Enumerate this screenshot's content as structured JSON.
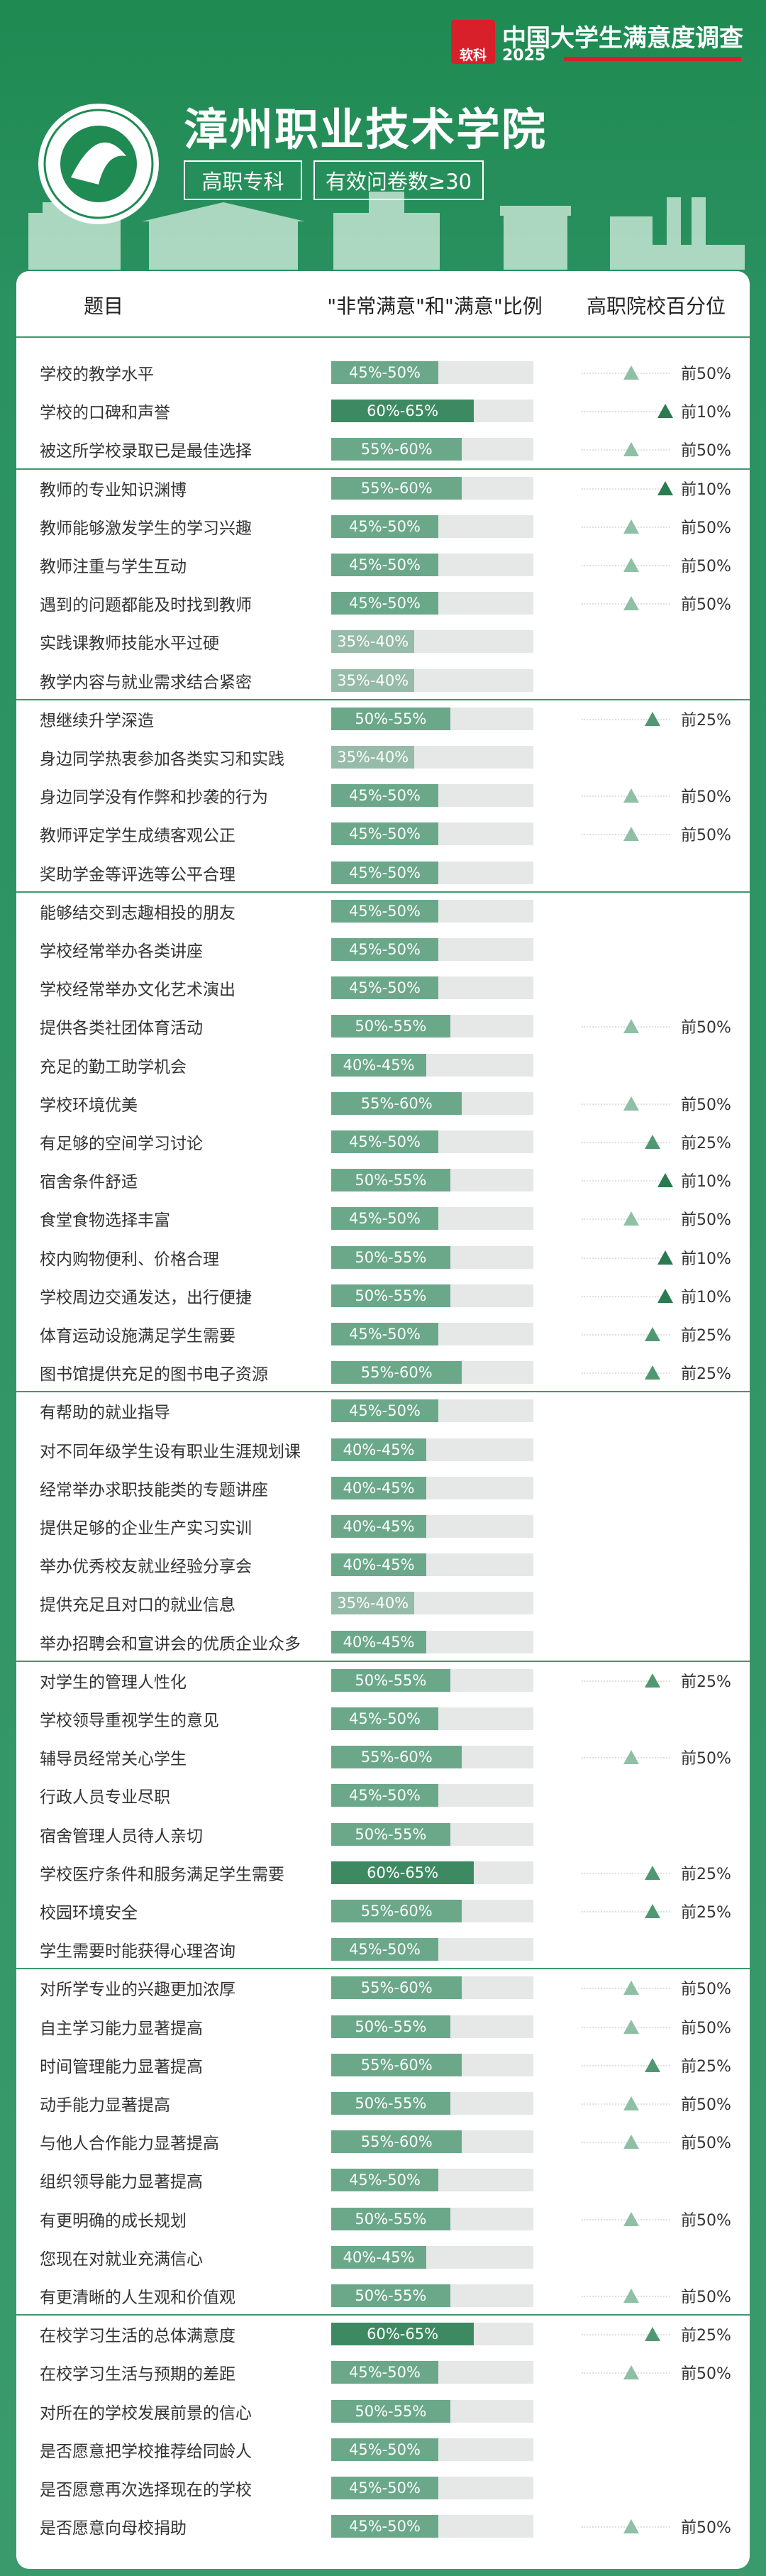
{
  "brand": {
    "logo": "软科",
    "name": "中国大学生满意度调查",
    "year": "2025"
  },
  "header": {
    "title": "漳州职业技术学院",
    "tags": [
      "高职专科",
      "有效问卷数≥30"
    ]
  },
  "table": {
    "columns": [
      "题目",
      "\"非常满意\"和\"满意\"比例",
      "高职院校百分位"
    ],
    "groups": [
      {
        "rows": [
          {
            "item": "学校的教学水平",
            "range": "45%-50%",
            "percentile": "前50%"
          },
          {
            "item": "学校的口碑和声誉",
            "range": "60%-65%",
            "percentile": "前10%"
          },
          {
            "item": "被这所学校录取已是最佳选择",
            "range": "55%-60%",
            "percentile": "前50%"
          }
        ]
      },
      {
        "rows": [
          {
            "item": "教师的专业知识渊博",
            "range": "55%-60%",
            "percentile": "前10%"
          },
          {
            "item": "教师能够激发学生的学习兴趣",
            "range": "45%-50%",
            "percentile": "前50%"
          },
          {
            "item": "教师注重与学生互动",
            "range": "45%-50%",
            "percentile": "前50%"
          },
          {
            "item": "遇到的问题都能及时找到教师",
            "range": "45%-50%",
            "percentile": "前50%"
          },
          {
            "item": "实践课教师技能水平过硬",
            "range": "35%-40%"
          },
          {
            "item": "教学内容与就业需求结合紧密",
            "range": "35%-40%"
          }
        ]
      },
      {
        "rows": [
          {
            "item": "想继续升学深造",
            "range": "50%-55%",
            "percentile": "前25%"
          },
          {
            "item": "身边同学热衷参加各类实习和实践",
            "range": "35%-40%"
          },
          {
            "item": "身边同学没有作弊和抄袭的行为",
            "range": "45%-50%",
            "percentile": "前50%"
          },
          {
            "item": "教师评定学生成绩客观公正",
            "range": "45%-50%",
            "percentile": "前50%"
          },
          {
            "item": "奖助学金等评选等公平合理",
            "range": "45%-50%"
          }
        ]
      },
      {
        "rows": [
          {
            "item": "能够结交到志趣相投的朋友",
            "range": "45%-50%"
          },
          {
            "item": "学校经常举办各类讲座",
            "range": "45%-50%"
          },
          {
            "item": "学校经常举办文化艺术演出",
            "range": "45%-50%"
          },
          {
            "item": "提供各类社团体育活动",
            "range": "50%-55%",
            "percentile": "前50%"
          },
          {
            "item": "充足的勤工助学机会",
            "range": "40%-45%"
          },
          {
            "item": "学校环境优美",
            "range": "55%-60%",
            "percentile": "前50%"
          },
          {
            "item": "有足够的空间学习讨论",
            "range": "45%-50%",
            "percentile": "前25%"
          },
          {
            "item": "宿舍条件舒适",
            "range": "50%-55%",
            "percentile": "前10%"
          },
          {
            "item": "食堂食物选择丰富",
            "range": "45%-50%",
            "percentile": "前50%"
          },
          {
            "item": "校内购物便利、价格合理",
            "range": "50%-55%",
            "percentile": "前10%"
          },
          {
            "item": "学校周边交通发达，出行便捷",
            "range": "50%-55%",
            "percentile": "前10%"
          },
          {
            "item": "体育运动设施满足学生需要",
            "range": "45%-50%",
            "percentile": "前25%"
          },
          {
            "item": "图书馆提供充足的图书电子资源",
            "range": "55%-60%",
            "percentile": "前25%"
          }
        ]
      },
      {
        "rows": [
          {
            "item": "有帮助的就业指导",
            "range": "45%-50%"
          },
          {
            "item": "对不同年级学生设有职业生涯规划课",
            "range": "40%-45%"
          },
          {
            "item": "经常举办求职技能类的专题讲座",
            "range": "40%-45%"
          },
          {
            "item": "提供足够的企业生产实习实训",
            "range": "40%-45%"
          },
          {
            "item": "举办优秀校友就业经验分享会",
            "range": "40%-45%"
          },
          {
            "item": "提供充足且对口的就业信息",
            "range": "35%-40%"
          },
          {
            "item": "举办招聘会和宣讲会的优质企业众多",
            "range": "40%-45%"
          }
        ]
      },
      {
        "rows": [
          {
            "item": "对学生的管理人性化",
            "range": "50%-55%",
            "percentile": "前25%"
          },
          {
            "item": "学校领导重视学生的意见",
            "range": "45%-50%"
          },
          {
            "item": "辅导员经常关心学生",
            "range": "55%-60%",
            "percentile": "前50%"
          },
          {
            "item": "行政人员专业尽职",
            "range": "45%-50%"
          },
          {
            "item": "宿舍管理人员待人亲切",
            "range": "50%-55%"
          },
          {
            "item": "学校医疗条件和服务满足学生需要",
            "range": "60%-65%",
            "percentile": "前25%"
          },
          {
            "item": "校园环境安全",
            "range": "55%-60%",
            "percentile": "前25%"
          },
          {
            "item": "学生需要时能获得心理咨询",
            "range": "45%-50%"
          }
        ]
      },
      {
        "rows": [
          {
            "item": "对所学专业的兴趣更加浓厚",
            "range": "55%-60%",
            "percentile": "前50%"
          },
          {
            "item": "自主学习能力显著提高",
            "range": "50%-55%",
            "percentile": "前50%"
          },
          {
            "item": "时间管理能力显著提高",
            "range": "55%-60%",
            "percentile": "前25%"
          },
          {
            "item": "动手能力显著提高",
            "range": "50%-55%",
            "percentile": "前50%"
          },
          {
            "item": "与他人合作能力显著提高",
            "range": "55%-60%",
            "percentile": "前50%"
          },
          {
            "item": "组织领导能力显著提高",
            "range": "45%-50%"
          },
          {
            "item": "有更明确的成长规划",
            "range": "50%-55%",
            "percentile": "前50%"
          },
          {
            "item": "您现在对就业充满信心",
            "range": "40%-45%"
          },
          {
            "item": "有更清晰的人生观和价值观",
            "range": "50%-55%",
            "percentile": "前50%"
          }
        ]
      },
      {
        "rows": [
          {
            "item": "在校学习生活的总体满意度",
            "range": "60%-65%",
            "percentile": "前25%"
          },
          {
            "item": "在校学习生活与预期的差距",
            "range": "45%-50%",
            "percentile": "前50%"
          },
          {
            "item": "对所在的学校发展前景的信心",
            "range": "50%-55%"
          },
          {
            "item": "是否愿意把学校推荐给同龄人",
            "range": "45%-50%"
          },
          {
            "item": "是否愿意再次选择现在的学校",
            "range": "45%-50%"
          },
          {
            "item": "是否愿意向母校捐助",
            "range": "45%-50%",
            "percentile": "前50%"
          }
        ]
      }
    ]
  }
}
